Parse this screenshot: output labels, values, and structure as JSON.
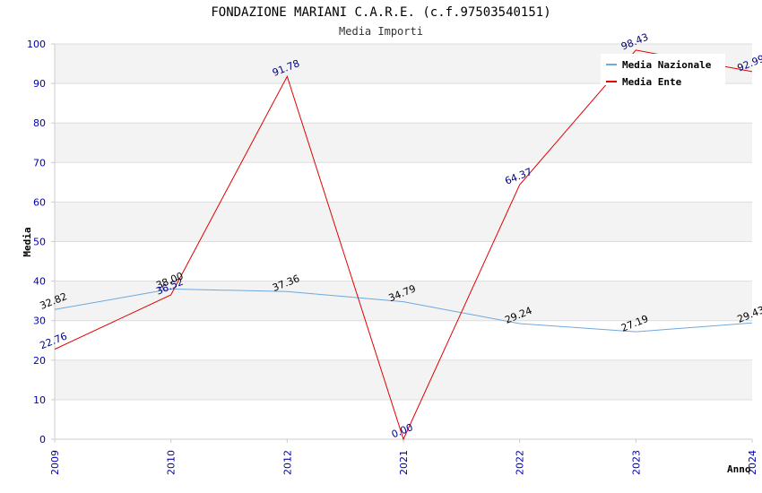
{
  "chart_data": {
    "type": "line",
    "title": "FONDAZIONE MARIANI C.A.R.E. (c.f.97503540151)",
    "subtitle": "Media Importi",
    "xlabel": "Anno",
    "ylabel": "Media",
    "ylim": [
      0,
      100
    ],
    "yticks": [
      0,
      10,
      20,
      30,
      40,
      50,
      60,
      70,
      80,
      90,
      100
    ],
    "categories": [
      "2009",
      "2010",
      "2012",
      "2021",
      "2022",
      "2023",
      "2024"
    ],
    "grid": true,
    "legend_position": "top-right",
    "series": [
      {
        "name": "Media Nazionale",
        "color": "#6fa8dc",
        "values": [
          32.82,
          38.0,
          37.36,
          34.79,
          29.24,
          27.19,
          29.43
        ],
        "labels": [
          "32.82",
          "38.00",
          "37.36",
          "34.79",
          "29.24",
          "27.19",
          "29.43"
        ]
      },
      {
        "name": "Media Ente",
        "color": "#e00000",
        "values": [
          22.76,
          36.52,
          91.78,
          0.0,
          64.37,
          98.43,
          92.99
        ],
        "labels": [
          "22.76",
          "36.52",
          "91.78",
          "0.00",
          "64.37",
          "98.43",
          "92.99"
        ]
      }
    ]
  }
}
